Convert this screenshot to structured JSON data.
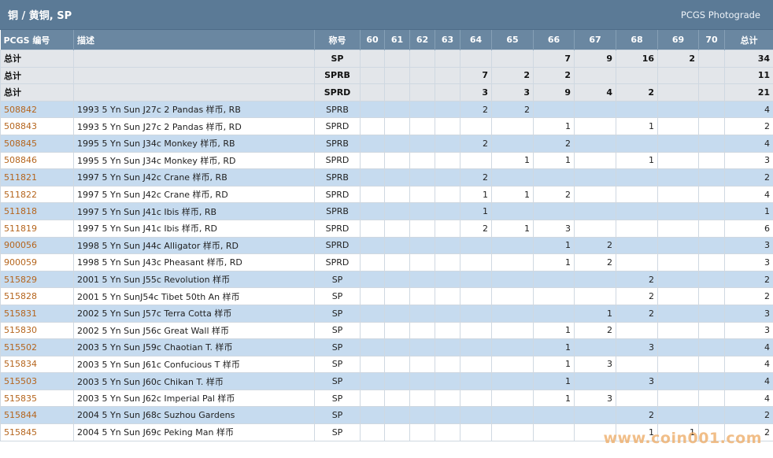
{
  "header": {
    "title": "铜 / 黄铜, SP",
    "brand_link": "PCGS Photograde"
  },
  "table": {
    "columns": [
      "PCGS 编号",
      "描述",
      "称号",
      "60",
      "61",
      "62",
      "63",
      "64",
      "65",
      "66",
      "67",
      "68",
      "69",
      "70",
      "总计"
    ],
    "totals": [
      {
        "label": "总计",
        "desig": "SP",
        "cells": [
          "",
          "",
          "",
          "",
          "",
          "",
          "7",
          "9",
          "16",
          "2",
          "",
          "34"
        ]
      },
      {
        "label": "总计",
        "desig": "SPRB",
        "cells": [
          "",
          "",
          "",
          "",
          "7",
          "2",
          "2",
          "",
          "",
          "",
          "",
          "11"
        ]
      },
      {
        "label": "总计",
        "desig": "SPRD",
        "cells": [
          "",
          "",
          "",
          "",
          "3",
          "3",
          "9",
          "4",
          "2",
          "",
          "",
          "21"
        ]
      }
    ],
    "rows": [
      {
        "pcgs": "508842",
        "desc": "1993 5 Yn Sun J27c 2 Pandas 样币, RB",
        "desig": "SPRB",
        "cells": [
          "",
          "",
          "",
          "",
          "2",
          "2",
          "",
          "",
          "",
          "",
          "",
          "4"
        ]
      },
      {
        "pcgs": "508843",
        "desc": "1993 5 Yn Sun J27c 2 Pandas 样币, RD",
        "desig": "SPRD",
        "cells": [
          "",
          "",
          "",
          "",
          "",
          "",
          "1",
          "",
          "1",
          "",
          "",
          "2"
        ]
      },
      {
        "pcgs": "508845",
        "desc": "1995 5 Yn Sun J34c Monkey 样币, RB",
        "desig": "SPRB",
        "cells": [
          "",
          "",
          "",
          "",
          "2",
          "",
          "2",
          "",
          "",
          "",
          "",
          "4"
        ]
      },
      {
        "pcgs": "508846",
        "desc": "1995 5 Yn Sun J34c Monkey 样币, RD",
        "desig": "SPRD",
        "cells": [
          "",
          "",
          "",
          "",
          "",
          "1",
          "1",
          "",
          "1",
          "",
          "",
          "3"
        ]
      },
      {
        "pcgs": "511821",
        "desc": "1997 5 Yn Sun J42c Crane 样币, RB",
        "desig": "SPRB",
        "cells": [
          "",
          "",
          "",
          "",
          "2",
          "",
          "",
          "",
          "",
          "",
          "",
          "2"
        ]
      },
      {
        "pcgs": "511822",
        "desc": "1997 5 Yn Sun J42c Crane 样币, RD",
        "desig": "SPRD",
        "cells": [
          "",
          "",
          "",
          "",
          "1",
          "1",
          "2",
          "",
          "",
          "",
          "",
          "4"
        ]
      },
      {
        "pcgs": "511818",
        "desc": "1997 5 Yn Sun J41c Ibis 样币, RB",
        "desig": "SPRB",
        "cells": [
          "",
          "",
          "",
          "",
          "1",
          "",
          "",
          "",
          "",
          "",
          "",
          "1"
        ]
      },
      {
        "pcgs": "511819",
        "desc": "1997 5 Yn Sun J41c Ibis 样币, RD",
        "desig": "SPRD",
        "cells": [
          "",
          "",
          "",
          "",
          "2",
          "1",
          "3",
          "",
          "",
          "",
          "",
          "6"
        ]
      },
      {
        "pcgs": "900056",
        "desc": "1998 5 Yn Sun J44c Alligator 样币, RD",
        "desig": "SPRD",
        "cells": [
          "",
          "",
          "",
          "",
          "",
          "",
          "1",
          "2",
          "",
          "",
          "",
          "3"
        ]
      },
      {
        "pcgs": "900059",
        "desc": "1998 5 Yn Sun J43c Pheasant 样币, RD",
        "desig": "SPRD",
        "cells": [
          "",
          "",
          "",
          "",
          "",
          "",
          "1",
          "2",
          "",
          "",
          "",
          "3"
        ]
      },
      {
        "pcgs": "515829",
        "desc": "2001 5 Yn Sun J55c Revolution 样币",
        "desig": "SP",
        "cells": [
          "",
          "",
          "",
          "",
          "",
          "",
          "",
          "",
          "2",
          "",
          "",
          "2"
        ]
      },
      {
        "pcgs": "515828",
        "desc": "2001 5 Yn SunJ54c Tibet 50th An 样币",
        "desig": "SP",
        "cells": [
          "",
          "",
          "",
          "",
          "",
          "",
          "",
          "",
          "2",
          "",
          "",
          "2"
        ]
      },
      {
        "pcgs": "515831",
        "desc": "2002 5 Yn Sun J57c Terra Cotta 样币",
        "desig": "SP",
        "cells": [
          "",
          "",
          "",
          "",
          "",
          "",
          "",
          "1",
          "2",
          "",
          "",
          "3"
        ]
      },
      {
        "pcgs": "515830",
        "desc": "2002 5 Yn Sun J56c Great Wall 样币",
        "desig": "SP",
        "cells": [
          "",
          "",
          "",
          "",
          "",
          "",
          "1",
          "2",
          "",
          "",
          "",
          "3"
        ]
      },
      {
        "pcgs": "515502",
        "desc": "2003 5 Yn Sun J59c Chaotian T. 样币",
        "desig": "SP",
        "cells": [
          "",
          "",
          "",
          "",
          "",
          "",
          "1",
          "",
          "3",
          "",
          "",
          "4"
        ]
      },
      {
        "pcgs": "515834",
        "desc": "2003 5 Yn Sun J61c Confucious T 样币",
        "desig": "SP",
        "cells": [
          "",
          "",
          "",
          "",
          "",
          "",
          "1",
          "3",
          "",
          "",
          "",
          "4"
        ]
      },
      {
        "pcgs": "515503",
        "desc": "2003 5 Yn Sun J60c Chikan T. 样币",
        "desig": "SP",
        "cells": [
          "",
          "",
          "",
          "",
          "",
          "",
          "1",
          "",
          "3",
          "",
          "",
          "4"
        ]
      },
      {
        "pcgs": "515835",
        "desc": "2003 5 Yn Sun J62c Imperial Pal 样币",
        "desig": "SP",
        "cells": [
          "",
          "",
          "",
          "",
          "",
          "",
          "1",
          "3",
          "",
          "",
          "",
          "4"
        ]
      },
      {
        "pcgs": "515844",
        "desc": "2004 5 Yn Sun J68c Suzhou Gardens",
        "desig": "SP",
        "cells": [
          "",
          "",
          "",
          "",
          "",
          "",
          "",
          "",
          "2",
          "",
          "",
          "2"
        ]
      },
      {
        "pcgs": "515845",
        "desc": "2004 5 Yn Sun J69c Peking Man 样币",
        "desig": "SP",
        "cells": [
          "",
          "",
          "",
          "",
          "",
          "",
          "",
          "",
          "1",
          "1",
          "",
          "2"
        ]
      }
    ]
  },
  "watermark": "www.coin001.com"
}
